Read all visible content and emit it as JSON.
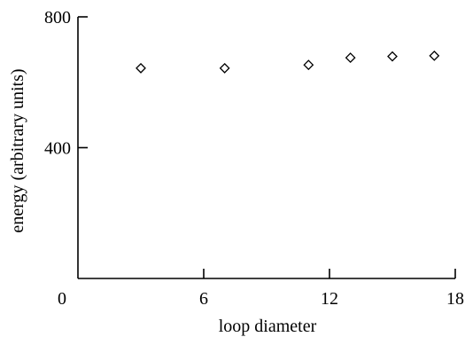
{
  "chart_data": {
    "type": "scatter",
    "title": "",
    "xlabel": "loop diameter",
    "ylabel": "energy (arbitrary units)",
    "xlim": [
      0,
      18
    ],
    "ylim": [
      0,
      800
    ],
    "x_ticks": [
      0,
      6,
      12,
      18
    ],
    "x_tick_labels": [
      "0",
      "6",
      "12",
      "18"
    ],
    "y_ticks": [
      400,
      800
    ],
    "y_tick_labels": [
      "400",
      "800"
    ],
    "grid": false,
    "marker": "diamond",
    "colors": {
      "marker": "#000000",
      "axis": "#000000"
    },
    "series": [
      {
        "x": [
          3,
          7,
          11,
          13,
          15,
          17
        ],
        "y": [
          643,
          643,
          653,
          675,
          679,
          681
        ]
      }
    ]
  }
}
